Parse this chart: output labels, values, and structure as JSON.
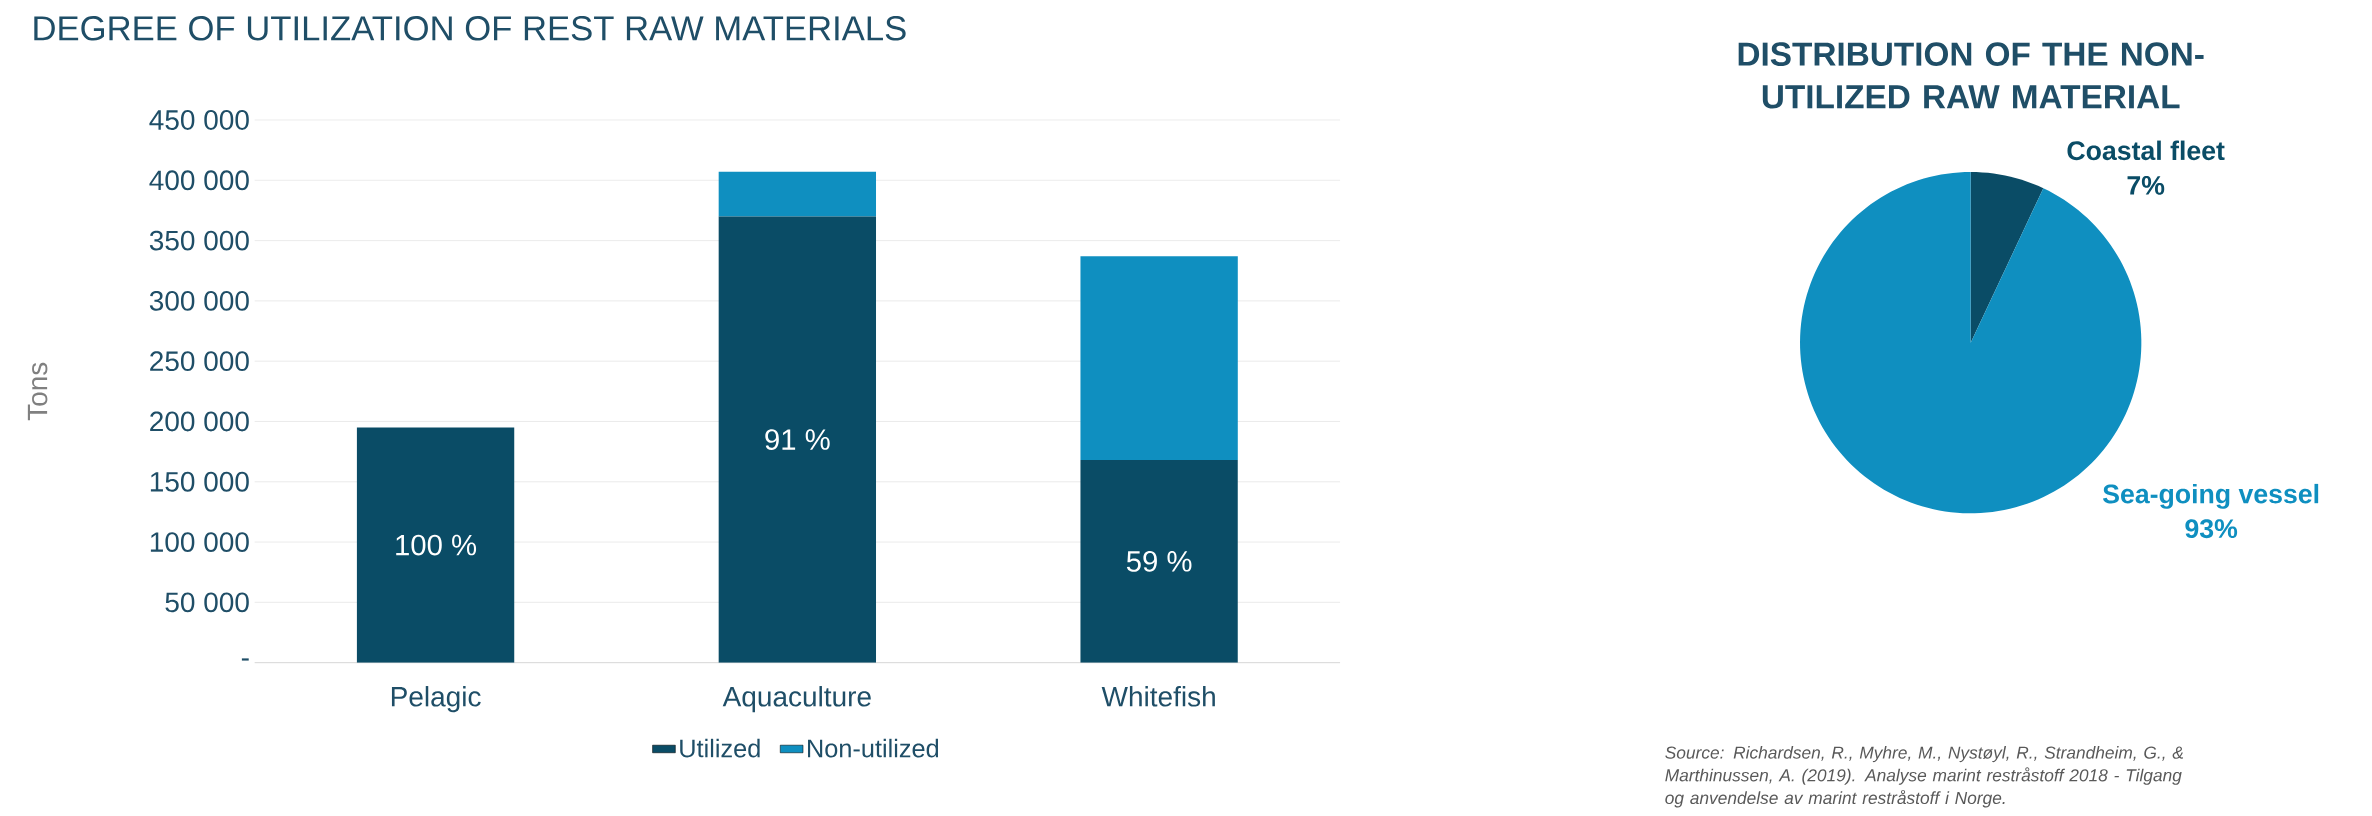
{
  "chart_data": [
    {
      "type": "bar",
      "title": "DEGREE OF UTILIZATION OF REST RAW MATERIALS",
      "ylabel": "Tons",
      "stacked": true,
      "categories": [
        "Pelagic",
        "Aquaculture",
        "Whitefish"
      ],
      "series": [
        {
          "name": "Utilized",
          "color": "#0a4c66",
          "values": [
            195000,
            370000,
            168000
          ]
        },
        {
          "name": "Non-utilized",
          "color": "#0f8fc0",
          "values": [
            0,
            37000,
            169000
          ]
        }
      ],
      "ylim": [
        0,
        450000
      ],
      "yticks": [
        {
          "value": 0,
          "label": "-"
        },
        {
          "value": 50000,
          "label": "50 000"
        },
        {
          "value": 100000,
          "label": "100 000"
        },
        {
          "value": 150000,
          "label": "150 000"
        },
        {
          "value": 200000,
          "label": "200 000"
        },
        {
          "value": 250000,
          "label": "250 000"
        },
        {
          "value": 300000,
          "label": "300 000"
        },
        {
          "value": 350000,
          "label": "350 000"
        },
        {
          "value": 400000,
          "label": "400 000"
        },
        {
          "value": 450000,
          "label": "450 000"
        }
      ],
      "annotations": [
        "100 %",
        "91 %",
        "59 %"
      ],
      "grid": "y",
      "legend": "bottom"
    },
    {
      "type": "pie",
      "title": "DISTRIBUTION OF THE NON-UTILIZED RAW MATERIAL",
      "categories": [
        "Coastal fleet",
        "Sea-going vessel"
      ],
      "values": [
        7,
        93
      ],
      "value_labels": [
        "7%",
        "93%"
      ],
      "colors": [
        "#0a4c66",
        "#0f8fc0"
      ],
      "annotations": [
        "Source: Richardsen, R., Myhre, M., Nystøyl, R., Strandheim, G., & Marthinussen, A. (2019). Analyse marint restråstoff 2018 - Tilgang og anvendelse av marint restråstoff i Norge."
      ]
    }
  ]
}
